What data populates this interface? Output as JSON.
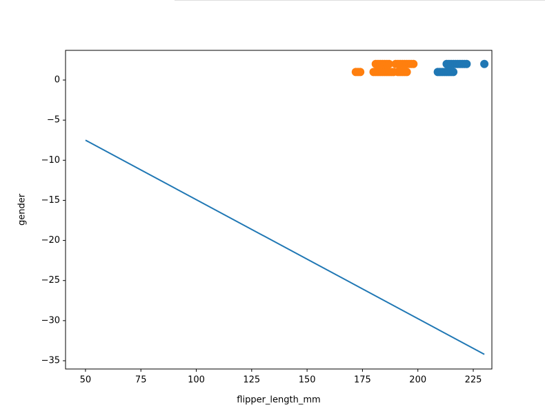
{
  "chart_data": {
    "type": "scatter",
    "xlabel": "flipper_length_mm",
    "ylabel": "gender",
    "xlim": [
      41,
      233.4
    ],
    "ylim": [
      -36.03,
      3.7
    ],
    "xticks": [
      50,
      75,
      100,
      125,
      150,
      175,
      200,
      225
    ],
    "yticks": [
      0,
      {
        "value": -5,
        "label": "−5"
      },
      {
        "value": -10,
        "label": "−10"
      },
      {
        "value": -15,
        "label": "−15"
      },
      {
        "value": -20,
        "label": "−20"
      },
      {
        "value": -25,
        "label": "−25"
      },
      {
        "value": -30,
        "label": "−30"
      },
      {
        "value": -35,
        "label": "−35"
      }
    ],
    "series": [
      {
        "type": "line",
        "color": "#1f77b4",
        "x": [
          50,
          230
        ],
        "values": [
          -7.5,
          -34.2
        ]
      },
      {
        "type": "scatter",
        "color": "#1f77b4",
        "x": [
          213,
          214,
          215,
          216,
          217,
          218,
          219,
          220,
          221,
          222,
          230,
          209,
          210,
          211,
          212,
          213,
          214,
          215,
          216
        ],
        "values": [
          2,
          2,
          2,
          2,
          2,
          2,
          2,
          2,
          2,
          2,
          2,
          1,
          1,
          1,
          1,
          1,
          1,
          1,
          1
        ]
      },
      {
        "type": "scatter",
        "color": "#ff7f0e",
        "x": [
          181,
          182,
          183,
          184,
          185,
          186,
          187,
          190,
          191,
          192,
          193,
          194,
          195,
          196,
          197,
          198,
          172,
          173,
          174,
          180,
          181,
          182,
          183,
          184,
          185,
          186,
          187,
          188,
          189,
          191,
          192,
          193,
          194,
          195
        ],
        "values": [
          2,
          2,
          2,
          2,
          2,
          2,
          2,
          2,
          2,
          2,
          2,
          2,
          2,
          2,
          2,
          2,
          1,
          1,
          1,
          1,
          1,
          1,
          1,
          1,
          1,
          1,
          1,
          1,
          1,
          1,
          1,
          1,
          1,
          1
        ]
      }
    ]
  }
}
